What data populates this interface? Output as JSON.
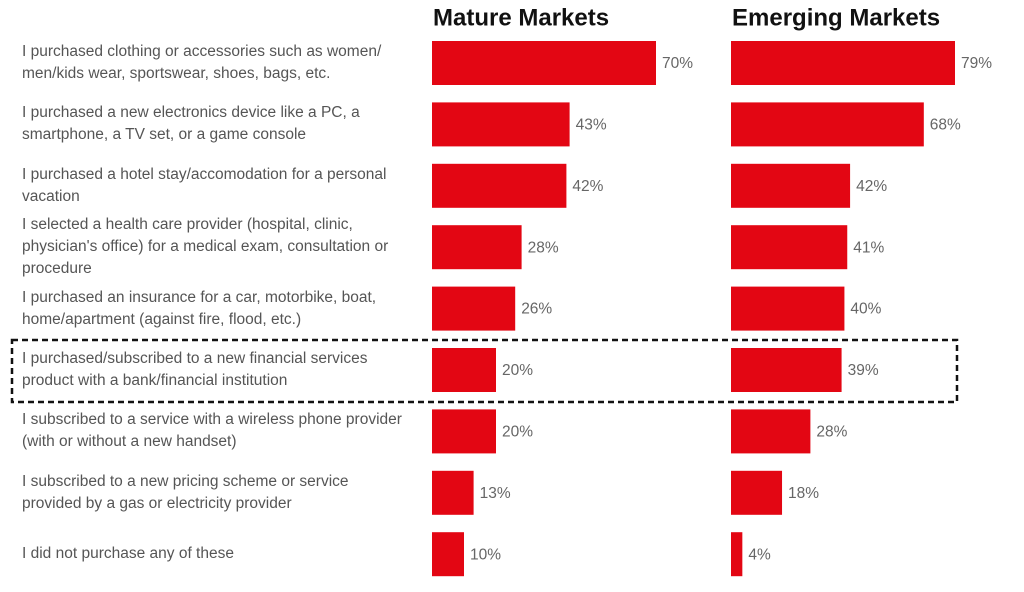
{
  "chart_data": {
    "type": "bar",
    "categories": [
      "I purchased clothing or accessories such as women/ men/kids wear, sportswear, shoes, bags, etc.",
      "I purchased a new electronics device like a PC, a smartphone, a TV set, or a game console",
      "I purchased a hotel stay/accomodation for a personal vacation",
      "I selected a health care provider (hospital, clinic, physician's office) for a medical exam, consultation or procedure",
      "I purchased an insurance for a car, motorbike, boat, home/apartment (against fire, flood, etc.)",
      "I purchased/subscribed to a new financial services product with a bank/financial institution",
      "I subscribed to a service with a wireless phone provider (with or without a new handset)",
      "I subscribed to a new pricing scheme or service provided by a gas or electricity provider",
      "I did not purchase any of these"
    ],
    "series": [
      {
        "name": "Mature Markets",
        "color": "#e30613",
        "values": [
          70,
          43,
          42,
          28,
          26,
          20,
          20,
          13,
          10
        ],
        "value_labels": [
          "70%",
          "43%",
          "42%",
          "28%",
          "26%",
          "20%",
          "20%",
          "13%",
          "10%"
        ]
      },
      {
        "name": "Emerging Markets",
        "color": "#e30613",
        "values": [
          79,
          68,
          42,
          41,
          40,
          39,
          28,
          18,
          4
        ],
        "value_labels": [
          "79%",
          "68%",
          "42%",
          "41%",
          "40%",
          "39%",
          "28%",
          "18%",
          "4%"
        ]
      }
    ]
  }
}
